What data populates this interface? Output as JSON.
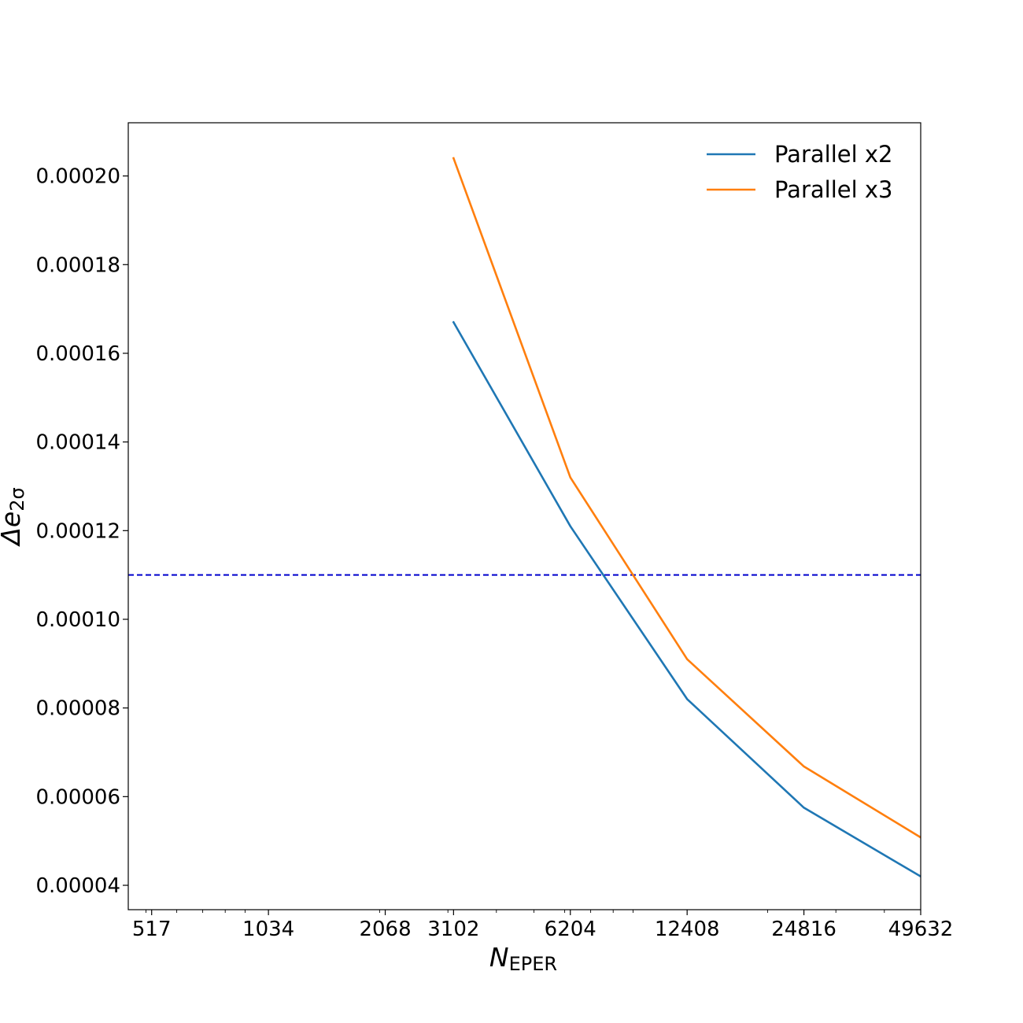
{
  "chart_data": {
    "type": "line",
    "title": "",
    "xlabel": "N",
    "xlabel_sub": "EPER",
    "ylabel": "Δe",
    "ylabel_sub": "2σ",
    "x_scale": "log",
    "xlim": [
      450,
      49632
    ],
    "ylim": [
      3.45e-05,
      0.000212
    ],
    "x_ticks": [
      517,
      1034,
      2068,
      3102,
      6204,
      12408,
      24816,
      49632
    ],
    "x_tick_labels": [
      "517",
      "1034",
      "2068",
      "3102",
      "6204",
      "12408",
      "24816",
      "49632"
    ],
    "y_ticks": [
      4e-05,
      6e-05,
      8e-05,
      0.0001,
      0.00012,
      0.00014,
      0.00016,
      0.00018,
      0.0002
    ],
    "y_tick_labels": [
      "0.00004",
      "0.00006",
      "0.00008",
      "0.00010",
      "0.00012",
      "0.00014",
      "0.00016",
      "0.00018",
      "0.00020"
    ],
    "grid": false,
    "legend_position": "top-right",
    "series": [
      {
        "name": "Parallel x2",
        "color": "#1f77b4",
        "x": [
          3102,
          6204,
          12408,
          24816,
          49632
        ],
        "y": [
          0.000167,
          0.000121,
          8.2e-05,
          5.75e-05,
          4.2e-05
        ]
      },
      {
        "name": "Parallel x3",
        "color": "#ff7f0e",
        "x": [
          3102,
          6204,
          12408,
          24816,
          49632
        ],
        "y": [
          0.000204,
          0.000132,
          9.1e-05,
          6.68e-05,
          5.08e-05
        ]
      }
    ],
    "reference_line": {
      "y": 0.00011,
      "x_start": 450,
      "color": "#0000cc",
      "style": "dashed"
    }
  }
}
